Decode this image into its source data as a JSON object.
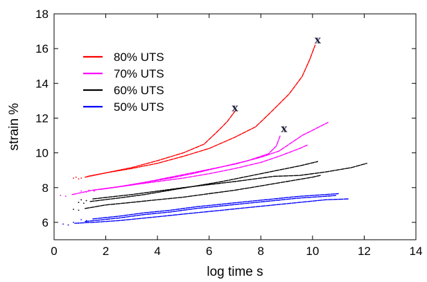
{
  "chart_data": {
    "type": "scatter",
    "xlabel": "log time s",
    "ylabel": "strain %",
    "xlim": [
      0,
      14
    ],
    "ylim": [
      5,
      18
    ],
    "xticks": [
      0,
      2,
      4,
      6,
      8,
      10,
      12,
      14
    ],
    "yticks": [
      6,
      8,
      10,
      12,
      14,
      16,
      18
    ],
    "grid": false,
    "legend_position": "top-left",
    "failure_symbol": "x",
    "series": [
      {
        "name": "80% UTS",
        "color": "#ff0000",
        "curves": [
          {
            "points": [
              [
                1.2,
                8.6
              ],
              [
                2,
                8.85
              ],
              [
                3,
                9.15
              ],
              [
                4,
                9.55
              ],
              [
                5,
                10.0
              ],
              [
                5.8,
                10.5
              ],
              [
                6.3,
                11.2
              ],
              [
                6.7,
                11.8
              ],
              [
                7.0,
                12.4
              ]
            ],
            "failure": [
              7.0,
              12.6
            ]
          },
          {
            "points": [
              [
                1.3,
                8.65
              ],
              [
                2,
                8.85
              ],
              [
                3,
                9.1
              ],
              [
                4,
                9.4
              ],
              [
                5,
                9.8
              ],
              [
                6,
                10.25
              ],
              [
                7,
                10.9
              ],
              [
                7.8,
                11.5
              ],
              [
                8.5,
                12.5
              ],
              [
                9.1,
                13.4
              ],
              [
                9.6,
                14.4
              ],
              [
                9.9,
                15.4
              ],
              [
                10.1,
                16.2
              ]
            ],
            "failure": [
              10.2,
              16.5
            ]
          }
        ]
      },
      {
        "name": "70% UTS",
        "color": "#ff00ff",
        "curves": [
          {
            "points": [
              [
                0.7,
                7.6
              ],
              [
                1.5,
                7.85
              ],
              [
                2.5,
                8.05
              ],
              [
                3.5,
                8.3
              ],
              [
                4.5,
                8.55
              ],
              [
                5.5,
                8.85
              ],
              [
                6.5,
                9.2
              ],
              [
                7.5,
                9.55
              ],
              [
                8.3,
                9.95
              ],
              [
                8.6,
                10.4
              ],
              [
                8.75,
                11.0
              ]
            ],
            "failure": [
              8.9,
              11.4
            ]
          },
          {
            "points": [
              [
                1.5,
                7.85
              ],
              [
                3,
                8.15
              ],
              [
                4,
                8.45
              ],
              [
                5,
                8.75
              ],
              [
                6,
                9.05
              ],
              [
                7,
                9.35
              ],
              [
                8,
                9.75
              ],
              [
                8.7,
                10.1
              ],
              [
                9,
                10.4
              ],
              [
                9.6,
                11.0
              ],
              [
                10,
                11.3
              ],
              [
                10.6,
                11.75
              ]
            ]
          },
          {
            "points": [
              [
                1.8,
                7.9
              ],
              [
                3,
                8.15
              ],
              [
                4,
                8.35
              ],
              [
                5,
                8.55
              ],
              [
                6,
                8.8
              ],
              [
                7,
                9.1
              ],
              [
                8,
                9.45
              ],
              [
                8.7,
                9.8
              ],
              [
                9.5,
                10.25
              ],
              [
                9.8,
                10.45
              ]
            ]
          }
        ]
      },
      {
        "name": "60% UTS",
        "color": "#000000",
        "curves": [
          {
            "points": [
              [
                1.2,
                6.8
              ],
              [
                2,
                7.0
              ],
              [
                3,
                7.15
              ],
              [
                4,
                7.3
              ],
              [
                5,
                7.45
              ],
              [
                6,
                7.65
              ],
              [
                7,
                7.85
              ],
              [
                8,
                8.1
              ],
              [
                9,
                8.35
              ],
              [
                10,
                8.6
              ],
              [
                10.3,
                8.7
              ]
            ]
          },
          {
            "points": [
              [
                1.4,
                7.2
              ],
              [
                2.5,
                7.4
              ],
              [
                3.5,
                7.6
              ],
              [
                4.5,
                7.85
              ],
              [
                5.5,
                8.1
              ],
              [
                6.5,
                8.35
              ],
              [
                7.5,
                8.65
              ],
              [
                8.5,
                8.95
              ],
              [
                9.5,
                9.25
              ],
              [
                10.2,
                9.5
              ]
            ]
          },
          {
            "points": [
              [
                1.5,
                7.35
              ],
              [
                3,
                7.6
              ],
              [
                5,
                8.0
              ],
              [
                7,
                8.35
              ],
              [
                8.5,
                8.65
              ],
              [
                9.5,
                8.7
              ],
              [
                10.5,
                8.9
              ],
              [
                11.5,
                9.15
              ],
              [
                12.1,
                9.4
              ]
            ]
          }
        ]
      },
      {
        "name": "50% UTS",
        "color": "#0000ff",
        "curves": [
          {
            "points": [
              [
                0.8,
                5.95
              ],
              [
                1.5,
                6.0
              ],
              [
                2.5,
                6.1
              ],
              [
                3.5,
                6.25
              ],
              [
                4.5,
                6.4
              ],
              [
                5.5,
                6.55
              ],
              [
                6.5,
                6.7
              ],
              [
                7.5,
                6.85
              ],
              [
                8.5,
                7.0
              ],
              [
                9.5,
                7.15
              ],
              [
                10.5,
                7.3
              ],
              [
                11.4,
                7.35
              ]
            ]
          },
          {
            "points": [
              [
                1.2,
                6.05
              ],
              [
                2.5,
                6.25
              ],
              [
                3.5,
                6.45
              ],
              [
                4.5,
                6.6
              ],
              [
                5.5,
                6.8
              ],
              [
                6.5,
                6.95
              ],
              [
                7.5,
                7.1
              ],
              [
                8.5,
                7.25
              ],
              [
                9.5,
                7.4
              ],
              [
                10.5,
                7.5
              ],
              [
                10.9,
                7.55
              ]
            ]
          },
          {
            "points": [
              [
                1.5,
                6.2
              ],
              [
                2.5,
                6.35
              ],
              [
                3.5,
                6.55
              ],
              [
                4.5,
                6.7
              ],
              [
                5.5,
                6.9
              ],
              [
                6.5,
                7.05
              ],
              [
                7.5,
                7.2
              ],
              [
                8.5,
                7.35
              ],
              [
                9.5,
                7.5
              ],
              [
                10.5,
                7.6
              ],
              [
                11.0,
                7.65
              ]
            ]
          }
        ]
      }
    ]
  }
}
